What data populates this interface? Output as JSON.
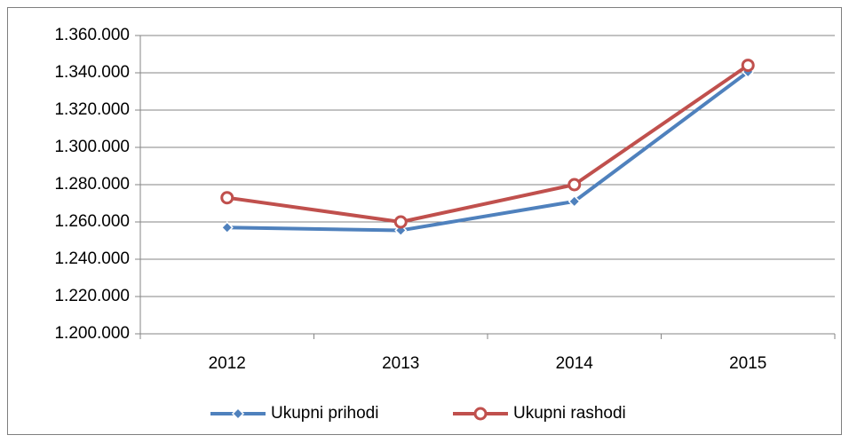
{
  "chart_data": {
    "type": "line",
    "categories": [
      "2012",
      "2013",
      "2014",
      "2015"
    ],
    "series": [
      {
        "name": "Ukupni prihodi",
        "color": "#4f81bd",
        "marker": "diamond",
        "values": [
          1257000,
          1255500,
          1271000,
          1340500
        ]
      },
      {
        "name": "Ukupni rashodi",
        "color": "#c0504d",
        "marker": "circle",
        "values": [
          1273000,
          1260000,
          1280000,
          1344000
        ]
      }
    ],
    "ylim": [
      1200000,
      1360000
    ],
    "yticks": [
      {
        "value": 1200000,
        "label": "1.200.000"
      },
      {
        "value": 1220000,
        "label": "1.220.000"
      },
      {
        "value": 1240000,
        "label": "1.240.000"
      },
      {
        "value": 1260000,
        "label": "1.260.000"
      },
      {
        "value": 1280000,
        "label": "1.280.000"
      },
      {
        "value": 1300000,
        "label": "1.300.000"
      },
      {
        "value": 1320000,
        "label": "1.320.000"
      },
      {
        "value": 1340000,
        "label": "1.340.000"
      },
      {
        "value": 1360000,
        "label": "1.360.000"
      }
    ],
    "grid": true,
    "legend": "bottom"
  }
}
